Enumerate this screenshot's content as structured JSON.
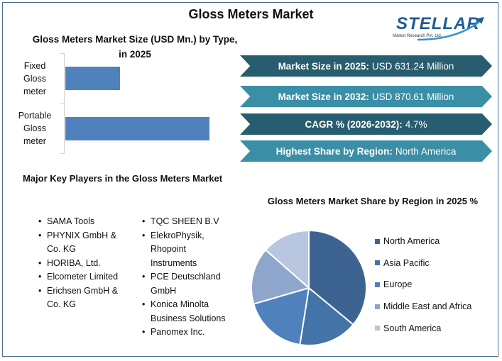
{
  "title": "Gloss Meters Market",
  "logo": {
    "brand": "STELLAR",
    "tagline": "Market Research Pvt. Ltd.",
    "icon": "arrow-up-right-icon"
  },
  "stats": [
    {
      "label": "Market Size in 2025:",
      "value": "USD 631.24 Million",
      "color": "#275d6e"
    },
    {
      "label": "Market Size in 2032:",
      "value": "USD 870.61 Million",
      "color": "#3a8ea5"
    },
    {
      "label": "CAGR % (2026-2032):",
      "value": "4.7%",
      "color": "#275d6e"
    },
    {
      "label": "Highest Share by Region:",
      "value": "North America",
      "color": "#3a8ea5"
    }
  ],
  "key_players": {
    "title": "Major Key Players in the Gloss Meters Market",
    "col1": [
      "SAMA Tools",
      "PHYNIX GmbH & Co. KG",
      "HORIBA, Ltd.",
      "Elcometer Limited",
      "Erichsen GmbH & Co. KG"
    ],
    "col2": [
      "TQC SHEEN B.V",
      "ElekroPhysik, Rhopoint Instruments",
      "PCE Deutschland GmbH",
      "Konica Minolta Business Solutions",
      "Panomex Inc."
    ]
  },
  "chart_data": [
    {
      "type": "bar",
      "orientation": "horizontal",
      "title": "Gloss Meters Market Size (USD Mn.) by Type, in 2025",
      "categories": [
        "Fixed Gloss meter",
        "Portable Gloss meter"
      ],
      "values": [
        160,
        420
      ],
      "xlabel": "",
      "ylabel": "",
      "color": "#4f81bd",
      "grid": false,
      "note": "Values are estimated relative bar lengths; no axis ticks shown"
    },
    {
      "type": "pie",
      "title": "Gloss Meters Market Share by Region in 2025 %",
      "categories": [
        "North America",
        "Asia Pacific",
        "Europe",
        "Middle East and Africa",
        "South America"
      ],
      "values": [
        36,
        16.5,
        18,
        16,
        13.5
      ],
      "colors": [
        "#3d6491",
        "#4473a8",
        "#4f81bd",
        "#8fa6cc",
        "#b8c6e0"
      ],
      "legend_position": "right"
    }
  ]
}
